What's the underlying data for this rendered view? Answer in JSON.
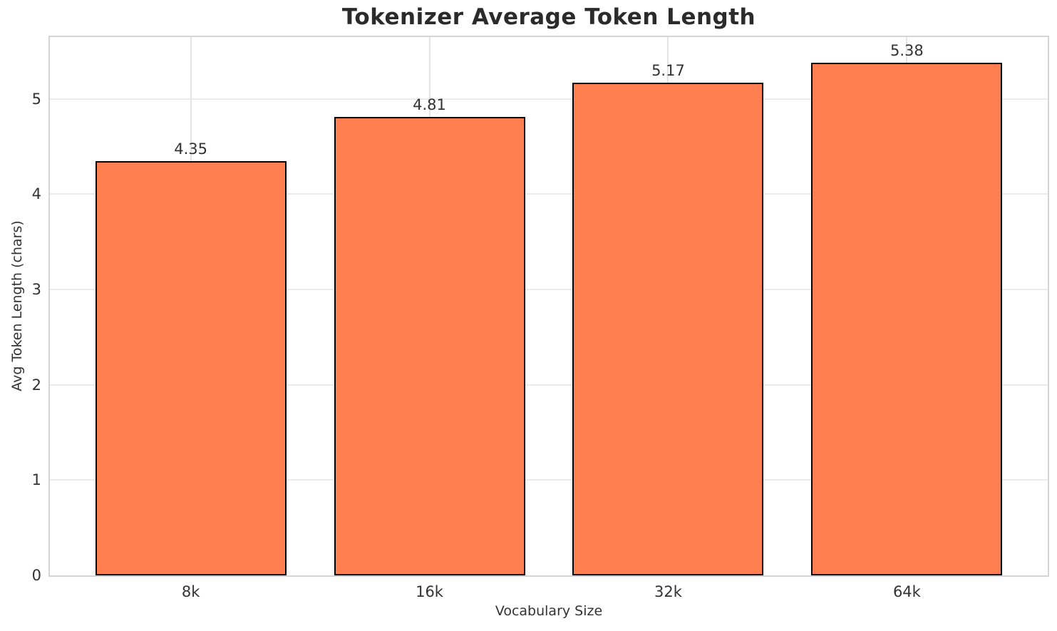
{
  "chart_data": {
    "type": "bar",
    "title": "Tokenizer Average Token Length",
    "xlabel": "Vocabulary Size",
    "ylabel": "Avg Token Length (chars)",
    "categories": [
      "8k",
      "16k",
      "32k",
      "64k"
    ],
    "values": [
      4.35,
      4.81,
      5.17,
      5.38
    ],
    "value_labels": [
      "4.35",
      "4.81",
      "5.17",
      "5.38"
    ],
    "ylim": [
      0,
      5.65
    ],
    "yticks": [
      0,
      1,
      2,
      3,
      4,
      5
    ],
    "grid": true,
    "legend_position": "none",
    "bar_color": "#FF7F50",
    "bar_edge_color": "#000000"
  }
}
